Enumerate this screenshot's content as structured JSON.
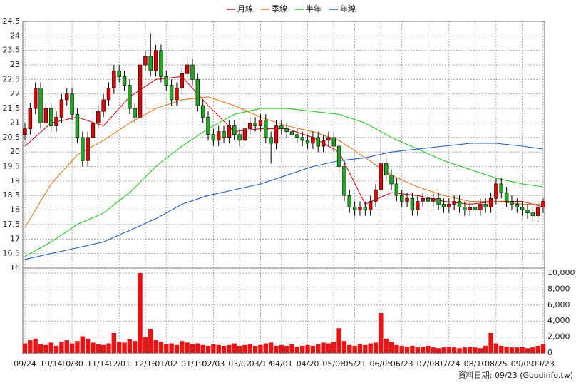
{
  "chart_data": {
    "type": "candlestick",
    "legend": [
      "月線",
      "季線",
      "半年",
      "年線"
    ],
    "footer": "資料日期: 09/23 (Goodinfo.tw)",
    "up_color": "#e00000",
    "down_color": "#1fa81f",
    "ylim": [
      16,
      24.5
    ],
    "yticks": [
      16,
      16.5,
      17,
      17.5,
      18,
      18.5,
      19,
      19.5,
      20,
      20.5,
      21,
      21.5,
      22,
      22.5,
      23,
      23.5,
      24,
      24.5
    ],
    "xlim": [
      0,
      99
    ],
    "xticks": [
      {
        "value": 0,
        "label": "09/24"
      },
      {
        "value": 5,
        "label": "10/14"
      },
      {
        "value": 9,
        "label": "10/30"
      },
      {
        "value": 14,
        "label": "11/14"
      },
      {
        "value": 18,
        "label": "12/01"
      },
      {
        "value": 23,
        "label": "12/16"
      },
      {
        "value": 27,
        "label": "01/02"
      },
      {
        "value": 32,
        "label": "01/19"
      },
      {
        "value": 36,
        "label": "02/03"
      },
      {
        "value": 41,
        "label": "03/02"
      },
      {
        "value": 45,
        "label": "03/17"
      },
      {
        "value": 49,
        "label": "04/01"
      },
      {
        "value": 54,
        "label": "04/20"
      },
      {
        "value": 59,
        "label": "05/06"
      },
      {
        "value": 63,
        "label": "05/21"
      },
      {
        "value": 68,
        "label": "06/05"
      },
      {
        "value": 72,
        "label": "06/23"
      },
      {
        "value": 77,
        "label": "07/08"
      },
      {
        "value": 81,
        "label": "07/24"
      },
      {
        "value": 86,
        "label": "08/10"
      },
      {
        "value": 90,
        "label": "08/25"
      },
      {
        "value": 95,
        "label": "09/09"
      },
      {
        "value": 99,
        "label": "09/23"
      }
    ],
    "ohlc": [
      [
        20.6,
        21.0,
        20.4,
        20.8
      ],
      [
        20.8,
        21.7,
        20.6,
        21.5
      ],
      [
        21.5,
        22.4,
        21.3,
        22.2
      ],
      [
        22.2,
        22.4,
        20.8,
        21.0
      ],
      [
        21.0,
        21.7,
        20.8,
        21.5
      ],
      [
        21.5,
        21.7,
        20.7,
        20.9
      ],
      [
        20.9,
        21.4,
        20.7,
        21.2
      ],
      [
        21.2,
        22.0,
        21.0,
        21.8
      ],
      [
        21.8,
        22.2,
        21.6,
        22.0
      ],
      [
        22.0,
        22.2,
        21.1,
        21.3
      ],
      [
        21.3,
        21.5,
        20.3,
        20.5
      ],
      [
        20.5,
        20.7,
        19.5,
        19.7
      ],
      [
        19.7,
        20.7,
        19.5,
        20.5
      ],
      [
        20.5,
        21.2,
        20.3,
        21.0
      ],
      [
        21.0,
        21.6,
        20.8,
        21.4
      ],
      [
        21.4,
        22.0,
        21.2,
        21.8
      ],
      [
        21.8,
        22.4,
        21.6,
        22.2
      ],
      [
        22.2,
        23.0,
        22.0,
        22.8
      ],
      [
        22.8,
        23.0,
        22.4,
        22.6
      ],
      [
        22.6,
        22.8,
        22.1,
        22.3
      ],
      [
        22.3,
        22.5,
        21.3,
        21.5
      ],
      [
        21.5,
        21.7,
        21.0,
        21.2
      ],
      [
        21.2,
        23.2,
        21.0,
        23.0
      ],
      [
        23.0,
        23.5,
        22.8,
        23.3
      ],
      [
        23.3,
        24.1,
        22.6,
        22.8
      ],
      [
        22.8,
        23.7,
        22.6,
        23.5
      ],
      [
        23.5,
        23.7,
        22.4,
        22.6
      ],
      [
        22.6,
        22.8,
        22.1,
        22.3
      ],
      [
        22.3,
        22.5,
        21.6,
        21.8
      ],
      [
        21.8,
        22.4,
        21.6,
        22.2
      ],
      [
        22.2,
        22.9,
        22.0,
        22.7
      ],
      [
        22.7,
        23.2,
        22.5,
        23.0
      ],
      [
        23.0,
        23.2,
        22.3,
        22.5
      ],
      [
        22.5,
        22.7,
        21.4,
        21.6
      ],
      [
        21.6,
        21.8,
        21.0,
        21.2
      ],
      [
        21.2,
        21.4,
        20.4,
        20.6
      ],
      [
        20.6,
        20.8,
        20.2,
        20.4
      ],
      [
        20.4,
        20.9,
        20.2,
        20.7
      ],
      [
        20.7,
        20.9,
        20.3,
        20.5
      ],
      [
        20.5,
        21.1,
        20.3,
        20.9
      ],
      [
        20.9,
        21.1,
        20.4,
        20.6
      ],
      [
        20.6,
        20.8,
        20.2,
        20.4
      ],
      [
        20.4,
        21.0,
        20.2,
        20.8
      ],
      [
        20.8,
        21.2,
        20.6,
        21.0
      ],
      [
        21.0,
        21.2,
        20.7,
        20.9
      ],
      [
        20.9,
        21.3,
        20.7,
        21.1
      ],
      [
        21.1,
        21.3,
        20.3,
        20.5
      ],
      [
        20.5,
        20.7,
        19.6,
        20.3
      ],
      [
        20.3,
        21.1,
        20.1,
        20.9
      ],
      [
        20.9,
        21.1,
        20.6,
        20.8
      ],
      [
        20.8,
        21.0,
        20.5,
        20.7
      ],
      [
        20.7,
        20.9,
        20.4,
        20.6
      ],
      [
        20.6,
        20.8,
        20.3,
        20.5
      ],
      [
        20.5,
        20.7,
        20.2,
        20.4
      ],
      [
        20.4,
        20.6,
        20.1,
        20.3
      ],
      [
        20.3,
        20.7,
        20.1,
        20.5
      ],
      [
        20.5,
        20.7,
        20.0,
        20.2
      ],
      [
        20.2,
        20.6,
        20.0,
        20.4
      ],
      [
        20.4,
        20.7,
        20.2,
        20.5
      ],
      [
        20.5,
        20.7,
        20.0,
        20.2
      ],
      [
        20.2,
        20.4,
        19.3,
        19.5
      ],
      [
        19.5,
        19.7,
        18.3,
        18.5
      ],
      [
        18.5,
        18.7,
        17.9,
        18.1
      ],
      [
        18.1,
        18.3,
        17.8,
        18.0
      ],
      [
        18.0,
        18.3,
        17.8,
        18.1
      ],
      [
        18.1,
        18.3,
        17.8,
        18.0
      ],
      [
        18.0,
        18.5,
        17.8,
        18.3
      ],
      [
        18.3,
        18.9,
        18.1,
        18.7
      ],
      [
        18.7,
        20.5,
        18.5,
        19.6
      ],
      [
        19.6,
        19.8,
        19.0,
        19.2
      ],
      [
        19.2,
        19.4,
        18.7,
        18.9
      ],
      [
        18.9,
        19.1,
        18.3,
        18.5
      ],
      [
        18.5,
        18.7,
        18.1,
        18.3
      ],
      [
        18.3,
        18.6,
        18.1,
        18.4
      ],
      [
        18.4,
        18.6,
        17.8,
        18.0
      ],
      [
        18.0,
        18.5,
        17.8,
        18.3
      ],
      [
        18.3,
        18.6,
        18.1,
        18.4
      ],
      [
        18.4,
        18.6,
        18.1,
        18.3
      ],
      [
        18.3,
        18.6,
        18.1,
        18.4
      ],
      [
        18.4,
        18.6,
        18.0,
        18.2
      ],
      [
        18.2,
        18.4,
        17.9,
        18.1
      ],
      [
        18.1,
        18.4,
        17.9,
        18.2
      ],
      [
        18.2,
        18.5,
        18.0,
        18.3
      ],
      [
        18.3,
        18.5,
        17.9,
        18.1
      ],
      [
        18.1,
        18.3,
        17.8,
        18.0
      ],
      [
        18.0,
        18.3,
        17.8,
        18.1
      ],
      [
        18.1,
        18.3,
        17.8,
        18.0
      ],
      [
        18.0,
        18.4,
        17.8,
        18.2
      ],
      [
        18.2,
        18.4,
        17.9,
        18.1
      ],
      [
        18.1,
        18.6,
        17.9,
        18.4
      ],
      [
        18.4,
        19.1,
        18.2,
        18.9
      ],
      [
        18.9,
        19.1,
        18.4,
        18.6
      ],
      [
        18.6,
        18.8,
        18.1,
        18.3
      ],
      [
        18.3,
        18.5,
        18.0,
        18.2
      ],
      [
        18.2,
        18.4,
        17.9,
        18.1
      ],
      [
        18.1,
        18.3,
        17.8,
        18.0
      ],
      [
        18.0,
        18.2,
        17.7,
        17.9
      ],
      [
        17.9,
        18.1,
        17.6,
        17.8
      ],
      [
        17.8,
        18.3,
        17.6,
        18.1
      ],
      [
        18.1,
        18.4,
        17.9,
        18.3
      ]
    ],
    "ma_x": [
      0,
      5,
      10,
      15,
      20,
      25,
      30,
      35,
      40,
      45,
      50,
      55,
      60,
      65,
      70,
      75,
      80,
      85,
      90,
      95,
      99
    ],
    "series": [
      {
        "name": "月線",
        "color": "#e01010",
        "values": [
          20.2,
          21.0,
          21.2,
          20.9,
          21.9,
          22.5,
          22.6,
          21.6,
          20.7,
          20.8,
          20.8,
          20.5,
          20.0,
          18.2,
          18.6,
          18.5,
          18.3,
          18.2,
          18.3,
          18.3,
          18.1
        ]
      },
      {
        "name": "季線",
        "color": "#f07818",
        "values": [
          17.4,
          18.9,
          19.9,
          20.4,
          21.0,
          21.5,
          21.8,
          21.9,
          21.6,
          21.2,
          20.9,
          20.7,
          20.4,
          19.8,
          19.2,
          18.8,
          18.5,
          18.3,
          18.3,
          18.2,
          18.2
        ]
      },
      {
        "name": "半年",
        "color": "#22cc22",
        "values": [
          16.4,
          16.9,
          17.5,
          17.9,
          18.6,
          19.5,
          20.2,
          20.8,
          21.3,
          21.5,
          21.5,
          21.4,
          21.3,
          21.0,
          20.5,
          20.1,
          19.7,
          19.4,
          19.1,
          18.9,
          18.8
        ]
      },
      {
        "name": "年線",
        "color": "#1a5fd0",
        "values": [
          16.3,
          16.5,
          16.7,
          16.9,
          17.3,
          17.7,
          18.2,
          18.5,
          18.7,
          18.9,
          19.2,
          19.5,
          19.7,
          19.8,
          20.0,
          20.1,
          20.2,
          20.3,
          20.3,
          20.2,
          20.1
        ]
      }
    ],
    "volume": {
      "color": "#ee1111",
      "ylim": [
        0,
        10625
      ],
      "yticks": [
        0,
        {
          "value": 2000,
          "label": "2,000"
        },
        {
          "value": 4000,
          "label": "4,000"
        },
        {
          "value": 6000,
          "label": "6,000"
        },
        {
          "value": 8000,
          "label": "8,000"
        },
        {
          "value": 10000,
          "label": "10,000"
        }
      ],
      "values": [
        1200,
        1600,
        1800,
        1100,
        1000,
        1300,
        900,
        1400,
        1600,
        1200,
        1500,
        2100,
        1800,
        1300,
        1100,
        1000,
        1200,
        2500,
        1400,
        1300,
        1700,
        1500,
        10000,
        2000,
        3000,
        1600,
        1400,
        1100,
        1200,
        1000,
        1500,
        1300,
        1100,
        1200,
        1000,
        900,
        1100,
        1000,
        900,
        1000,
        1200,
        900,
        1000,
        1100,
        900,
        1000,
        1200,
        1300,
        900,
        1000,
        900,
        1100,
        800,
        900,
        1000,
        900,
        1100,
        1300,
        1200,
        1400,
        3100,
        1500,
        1000,
        900,
        1100,
        1000,
        1200,
        1300,
        5000,
        1800,
        1400,
        1000,
        900,
        800,
        900,
        700,
        800,
        900,
        700,
        600,
        700,
        800,
        700,
        600,
        700,
        800,
        700,
        600,
        900,
        2500,
        1200,
        900,
        800,
        700,
        700,
        800,
        600,
        700,
        900,
        1100
      ]
    }
  }
}
